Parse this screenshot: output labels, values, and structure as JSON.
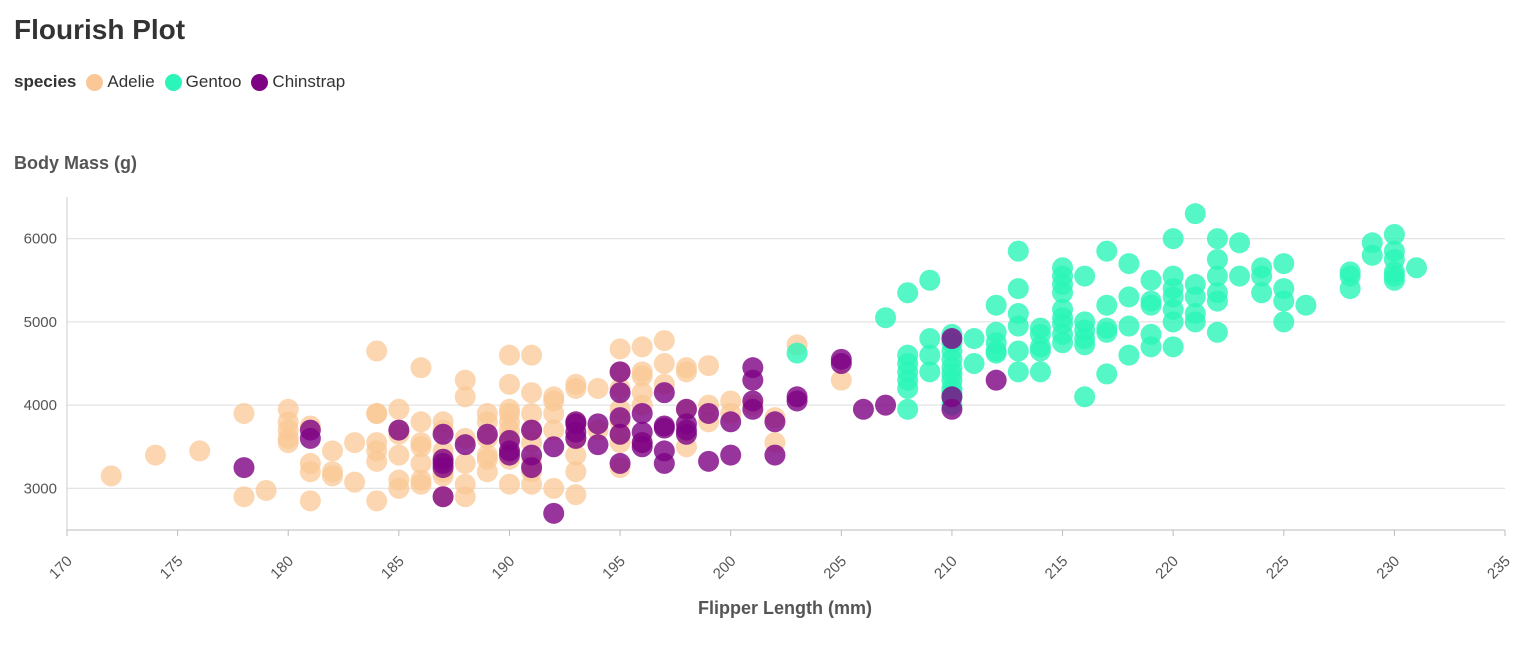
{
  "title": "Flourish Plot",
  "legend": {
    "title": "species",
    "items": [
      {
        "label": "Adelie",
        "color": "#F9C896"
      },
      {
        "label": "Gentoo",
        "color": "#2BF5B8"
      },
      {
        "label": "Chinstrap",
        "color": "#7E0384"
      }
    ]
  },
  "chart_data": {
    "type": "scatter",
    "title": "Flourish Plot",
    "xlabel": "Flipper Length (mm)",
    "ylabel": "Body Mass (g)",
    "xlim": [
      170,
      235
    ],
    "ylim": [
      2500,
      6500
    ],
    "xticks": [
      170,
      175,
      180,
      185,
      190,
      195,
      200,
      205,
      210,
      215,
      220,
      225,
      230,
      235
    ],
    "yticks": [
      3000,
      4000,
      5000,
      6000
    ],
    "legend_placement": "top-left",
    "grid": "horizontal",
    "series": [
      {
        "name": "Adelie",
        "color": "#F9C896",
        "points": [
          [
            172,
            3150
          ],
          [
            174,
            3400
          ],
          [
            176,
            3450
          ],
          [
            178,
            3900
          ],
          [
            178,
            2900
          ],
          [
            179,
            2975
          ],
          [
            180,
            3950
          ],
          [
            180,
            3800
          ],
          [
            180,
            3700
          ],
          [
            180,
            3550
          ],
          [
            180,
            3600
          ],
          [
            181,
            3300
          ],
          [
            181,
            3750
          ],
          [
            181,
            3200
          ],
          [
            181,
            2850
          ],
          [
            182,
            3450
          ],
          [
            182,
            3200
          ],
          [
            182,
            3150
          ],
          [
            183,
            3550
          ],
          [
            183,
            3075
          ],
          [
            184,
            4650
          ],
          [
            184,
            3900
          ],
          [
            184,
            3900
          ],
          [
            184,
            3550
          ],
          [
            184,
            3450
          ],
          [
            184,
            3325
          ],
          [
            184,
            2850
          ],
          [
            185,
            3950
          ],
          [
            185,
            3650
          ],
          [
            185,
            3700
          ],
          [
            185,
            3400
          ],
          [
            185,
            3000
          ],
          [
            185,
            3100
          ],
          [
            186,
            4450
          ],
          [
            186,
            3800
          ],
          [
            186,
            3550
          ],
          [
            186,
            3500
          ],
          [
            186,
            3300
          ],
          [
            186,
            3100
          ],
          [
            186,
            3050
          ],
          [
            187,
            3800
          ],
          [
            187,
            3700
          ],
          [
            187,
            3450
          ],
          [
            187,
            3350
          ],
          [
            187,
            3200
          ],
          [
            187,
            3150
          ],
          [
            187,
            2900
          ],
          [
            188,
            4300
          ],
          [
            188,
            4100
          ],
          [
            188,
            3600
          ],
          [
            188,
            3300
          ],
          [
            188,
            3050
          ],
          [
            188,
            2900
          ],
          [
            189,
            3900
          ],
          [
            189,
            3800
          ],
          [
            189,
            3600
          ],
          [
            189,
            3400
          ],
          [
            189,
            3350
          ],
          [
            189,
            3200
          ],
          [
            190,
            4600
          ],
          [
            190,
            4250
          ],
          [
            190,
            3950
          ],
          [
            190,
            3900
          ],
          [
            190,
            3800
          ],
          [
            190,
            3700
          ],
          [
            190,
            3600
          ],
          [
            190,
            3450
          ],
          [
            190,
            3350
          ],
          [
            190,
            3050
          ],
          [
            191,
            4600
          ],
          [
            191,
            4150
          ],
          [
            191,
            3900
          ],
          [
            191,
            3700
          ],
          [
            191,
            3550
          ],
          [
            191,
            3300
          ],
          [
            191,
            3200
          ],
          [
            191,
            3050
          ],
          [
            192,
            4100
          ],
          [
            192,
            4050
          ],
          [
            192,
            3900
          ],
          [
            192,
            3700
          ],
          [
            192,
            3000
          ],
          [
            193,
            4250
          ],
          [
            193,
            4200
          ],
          [
            193,
            3800
          ],
          [
            193,
            3600
          ],
          [
            193,
            3400
          ],
          [
            193,
            3200
          ],
          [
            193,
            2925
          ],
          [
            194,
            4200
          ],
          [
            194,
            3700
          ],
          [
            195,
            4675
          ],
          [
            195,
            4400
          ],
          [
            195,
            4200
          ],
          [
            195,
            3950
          ],
          [
            195,
            3800
          ],
          [
            195,
            3650
          ],
          [
            195,
            3550
          ],
          [
            195,
            3250
          ],
          [
            196,
            4700
          ],
          [
            196,
            4400
          ],
          [
            196,
            4350
          ],
          [
            196,
            4150
          ],
          [
            196,
            4000
          ],
          [
            196,
            3550
          ],
          [
            197,
            4775
          ],
          [
            197,
            4500
          ],
          [
            197,
            4250
          ],
          [
            198,
            4450
          ],
          [
            198,
            4400
          ],
          [
            198,
            3950
          ],
          [
            198,
            3500
          ],
          [
            199,
            4475
          ],
          [
            199,
            4000
          ],
          [
            199,
            3800
          ],
          [
            200,
            4050
          ],
          [
            200,
            3900
          ],
          [
            201,
            4000
          ],
          [
            202,
            3850
          ],
          [
            202,
            3550
          ],
          [
            203,
            4725
          ],
          [
            205,
            4300
          ]
        ]
      },
      {
        "name": "Gentoo",
        "color": "#2BF5B8",
        "points": [
          [
            203,
            4625
          ],
          [
            207,
            5050
          ],
          [
            208,
            4600
          ],
          [
            208,
            4500
          ],
          [
            208,
            4400
          ],
          [
            208,
            4300
          ],
          [
            208,
            4200
          ],
          [
            208,
            3950
          ],
          [
            208,
            5350
          ],
          [
            209,
            5500
          ],
          [
            209,
            4800
          ],
          [
            209,
            4600
          ],
          [
            209,
            4400
          ],
          [
            210,
            4850
          ],
          [
            210,
            4750
          ],
          [
            210,
            4650
          ],
          [
            210,
            4550
          ],
          [
            210,
            4450
          ],
          [
            210,
            4375
          ],
          [
            210,
            4300
          ],
          [
            210,
            4200
          ],
          [
            210,
            4150
          ],
          [
            210,
            4100
          ],
          [
            210,
            4000
          ],
          [
            211,
            4800
          ],
          [
            211,
            4500
          ],
          [
            212,
            5200
          ],
          [
            212,
            4875
          ],
          [
            212,
            4750
          ],
          [
            212,
            4650
          ],
          [
            212,
            4625
          ],
          [
            213,
            5850
          ],
          [
            213,
            5400
          ],
          [
            213,
            5100
          ],
          [
            213,
            4950
          ],
          [
            213,
            4650
          ],
          [
            213,
            4400
          ],
          [
            214,
            4925
          ],
          [
            214,
            4850
          ],
          [
            214,
            4700
          ],
          [
            214,
            4650
          ],
          [
            214,
            4400
          ],
          [
            215,
            5650
          ],
          [
            215,
            5550
          ],
          [
            215,
            5450
          ],
          [
            215,
            5350
          ],
          [
            215,
            5150
          ],
          [
            215,
            5050
          ],
          [
            215,
            4975
          ],
          [
            215,
            4850
          ],
          [
            215,
            4750
          ],
          [
            216,
            5550
          ],
          [
            216,
            5000
          ],
          [
            216,
            4900
          ],
          [
            216,
            4800
          ],
          [
            216,
            4725
          ],
          [
            216,
            4100
          ],
          [
            217,
            5850
          ],
          [
            217,
            5200
          ],
          [
            217,
            4925
          ],
          [
            217,
            4875
          ],
          [
            217,
            4375
          ],
          [
            218,
            5700
          ],
          [
            218,
            5300
          ],
          [
            218,
            4950
          ],
          [
            218,
            4600
          ],
          [
            219,
            5500
          ],
          [
            219,
            5250
          ],
          [
            219,
            5200
          ],
          [
            219,
            4850
          ],
          [
            219,
            4700
          ],
          [
            220,
            6000
          ],
          [
            220,
            5550
          ],
          [
            220,
            5400
          ],
          [
            220,
            5300
          ],
          [
            220,
            5150
          ],
          [
            220,
            5000
          ],
          [
            220,
            4700
          ],
          [
            221,
            6300
          ],
          [
            221,
            5450
          ],
          [
            221,
            5300
          ],
          [
            221,
            5100
          ],
          [
            221,
            5000
          ],
          [
            222,
            6000
          ],
          [
            222,
            5750
          ],
          [
            222,
            5550
          ],
          [
            222,
            5350
          ],
          [
            222,
            5250
          ],
          [
            222,
            4875
          ],
          [
            223,
            5950
          ],
          [
            223,
            5550
          ],
          [
            224,
            5650
          ],
          [
            224,
            5550
          ],
          [
            224,
            5350
          ],
          [
            225,
            5700
          ],
          [
            225,
            5400
          ],
          [
            225,
            5250
          ],
          [
            225,
            5000
          ],
          [
            226,
            5200
          ],
          [
            228,
            5600
          ],
          [
            228,
            5550
          ],
          [
            228,
            5400
          ],
          [
            229,
            5950
          ],
          [
            229,
            5800
          ],
          [
            230,
            6050
          ],
          [
            230,
            5850
          ],
          [
            230,
            5750
          ],
          [
            230,
            5600
          ],
          [
            230,
            5550
          ],
          [
            230,
            5500
          ],
          [
            231,
            5650
          ]
        ]
      },
      {
        "name": "Chinstrap",
        "color": "#7E0384",
        "points": [
          [
            178,
            3250
          ],
          [
            181,
            3700
          ],
          [
            181,
            3600
          ],
          [
            185,
            3700
          ],
          [
            187,
            3650
          ],
          [
            187,
            3350
          ],
          [
            187,
            3300
          ],
          [
            187,
            3250
          ],
          [
            187,
            2900
          ],
          [
            188,
            3525
          ],
          [
            189,
            3650
          ],
          [
            190,
            3575
          ],
          [
            190,
            3450
          ],
          [
            190,
            3400
          ],
          [
            191,
            3700
          ],
          [
            191,
            3400
          ],
          [
            191,
            3250
          ],
          [
            192,
            3500
          ],
          [
            192,
            2700
          ],
          [
            193,
            3800
          ],
          [
            193,
            3775
          ],
          [
            193,
            3675
          ],
          [
            193,
            3600
          ],
          [
            194,
            3775
          ],
          [
            194,
            3525
          ],
          [
            195,
            4400
          ],
          [
            195,
            4150
          ],
          [
            195,
            3850
          ],
          [
            195,
            3650
          ],
          [
            195,
            3300
          ],
          [
            196,
            3900
          ],
          [
            196,
            3675
          ],
          [
            196,
            3550
          ],
          [
            196,
            3500
          ],
          [
            197,
            4150
          ],
          [
            197,
            3750
          ],
          [
            197,
            3725
          ],
          [
            197,
            3450
          ],
          [
            197,
            3300
          ],
          [
            198,
            3950
          ],
          [
            198,
            3775
          ],
          [
            198,
            3700
          ],
          [
            198,
            3650
          ],
          [
            199,
            3900
          ],
          [
            199,
            3325
          ],
          [
            200,
            3800
          ],
          [
            200,
            3400
          ],
          [
            201,
            4450
          ],
          [
            201,
            4300
          ],
          [
            201,
            4050
          ],
          [
            201,
            3950
          ],
          [
            202,
            3800
          ],
          [
            202,
            3400
          ],
          [
            203,
            4100
          ],
          [
            203,
            4050
          ],
          [
            205,
            4550
          ],
          [
            205,
            4500
          ],
          [
            206,
            3950
          ],
          [
            207,
            4000
          ],
          [
            210,
            4800
          ],
          [
            210,
            4100
          ],
          [
            210,
            3950
          ],
          [
            212,
            4300
          ]
        ]
      }
    ]
  }
}
